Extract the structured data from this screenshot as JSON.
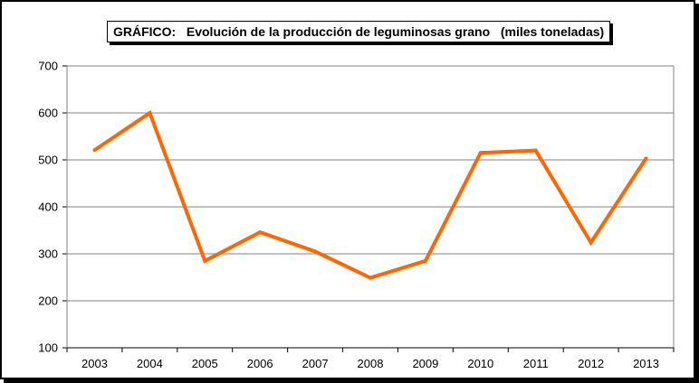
{
  "chart_data": {
    "type": "line",
    "title": "GRÁFICO:   Evolución de la producción de leguminosas grano   (miles toneladas)",
    "categories": [
      "2003",
      "2004",
      "2005",
      "2006",
      "2007",
      "2008",
      "2009",
      "2010",
      "2011",
      "2012",
      "2013"
    ],
    "series": [
      {
        "values": [
          521,
          600,
          285,
          346,
          305,
          249,
          285,
          515,
          520,
          324,
          503
        ]
      }
    ],
    "ylim": [
      100,
      700
    ],
    "yticks": [
      100,
      200,
      300,
      400,
      500,
      600,
      700
    ],
    "grid": true,
    "legend": "none",
    "line_color": "#FF6600",
    "grid_color": "#808080"
  }
}
